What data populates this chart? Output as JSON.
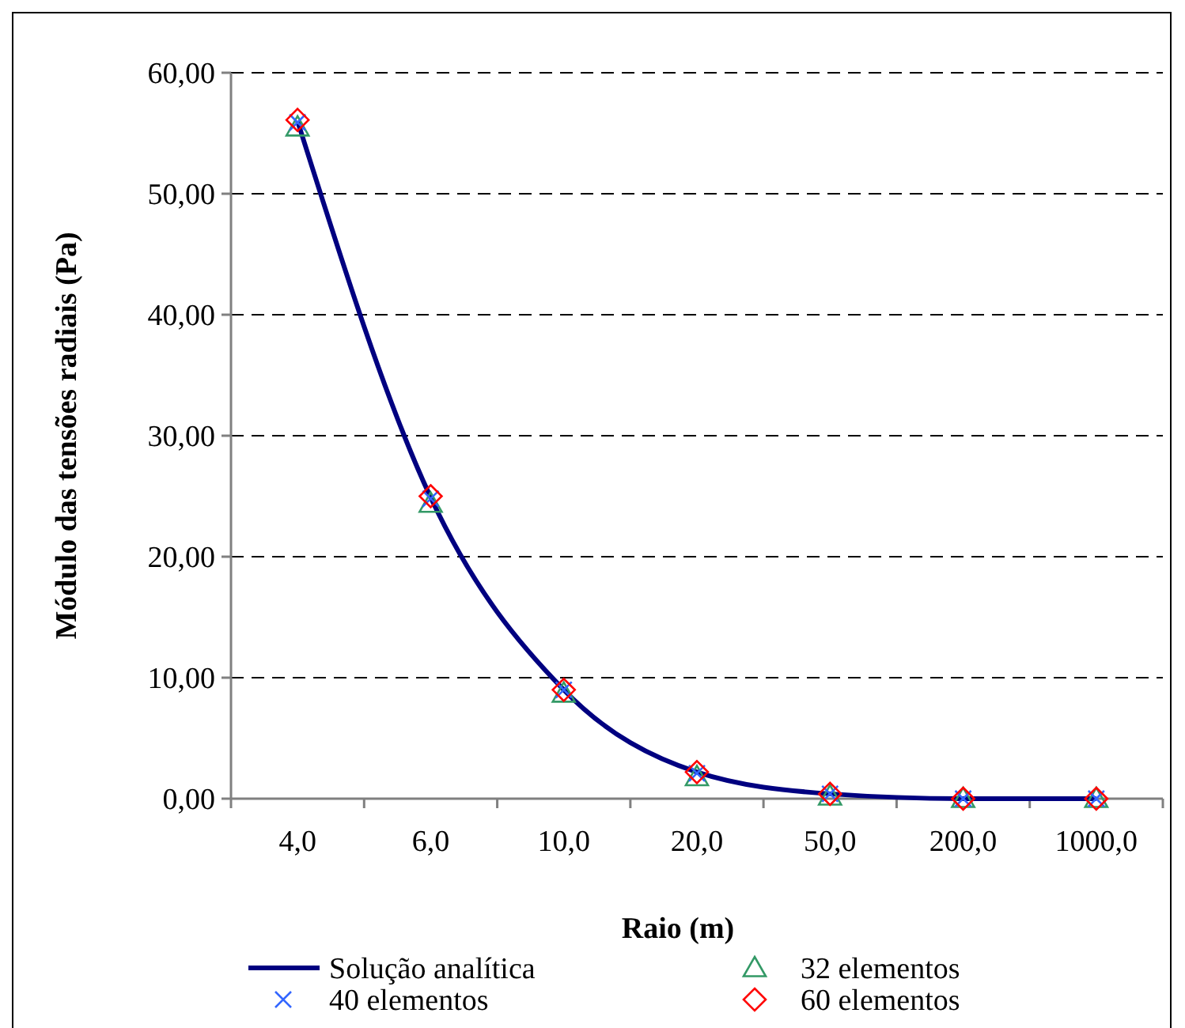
{
  "chart_data": {
    "type": "line",
    "xlabel": "Raio (m)",
    "ylabel": "Módulo das tensões radiais (Pa)",
    "categories": [
      "4,0",
      "6,0",
      "10,0",
      "20,0",
      "50,0",
      "200,0",
      "1000,0"
    ],
    "series": [
      {
        "name": "Solução analítica",
        "type": "line",
        "color": "#000080",
        "marker": "none",
        "values": [
          56.0,
          24.9,
          9.0,
          2.2,
          0.4,
          0.0,
          0.0
        ]
      },
      {
        "name": "32 elementos",
        "type": "scatter",
        "color": "#339966",
        "marker": "triangle",
        "values": [
          55.5,
          24.4,
          8.7,
          1.8,
          0.2,
          0.0,
          0.0
        ]
      },
      {
        "name": "40 elementos",
        "type": "scatter",
        "color": "#3366ff",
        "marker": "cross",
        "values": [
          55.9,
          24.8,
          9.0,
          2.1,
          0.4,
          0.0,
          0.0
        ]
      },
      {
        "name": "60 elementos",
        "type": "scatter",
        "color": "#ff0000",
        "marker": "diamond",
        "values": [
          56.1,
          25.0,
          9.0,
          2.2,
          0.4,
          0.0,
          0.0
        ]
      }
    ],
    "ylim": [
      0,
      60
    ],
    "yticks": [
      {
        "value": 0,
        "label": "0,00"
      },
      {
        "value": 10,
        "label": "10,00"
      },
      {
        "value": 20,
        "label": "20,00"
      },
      {
        "value": 30,
        "label": "30,00"
      },
      {
        "value": 40,
        "label": "40,00"
      },
      {
        "value": 50,
        "label": "50,00"
      },
      {
        "value": 60,
        "label": "60,00"
      }
    ],
    "grid": "y",
    "legend": "bottom"
  }
}
